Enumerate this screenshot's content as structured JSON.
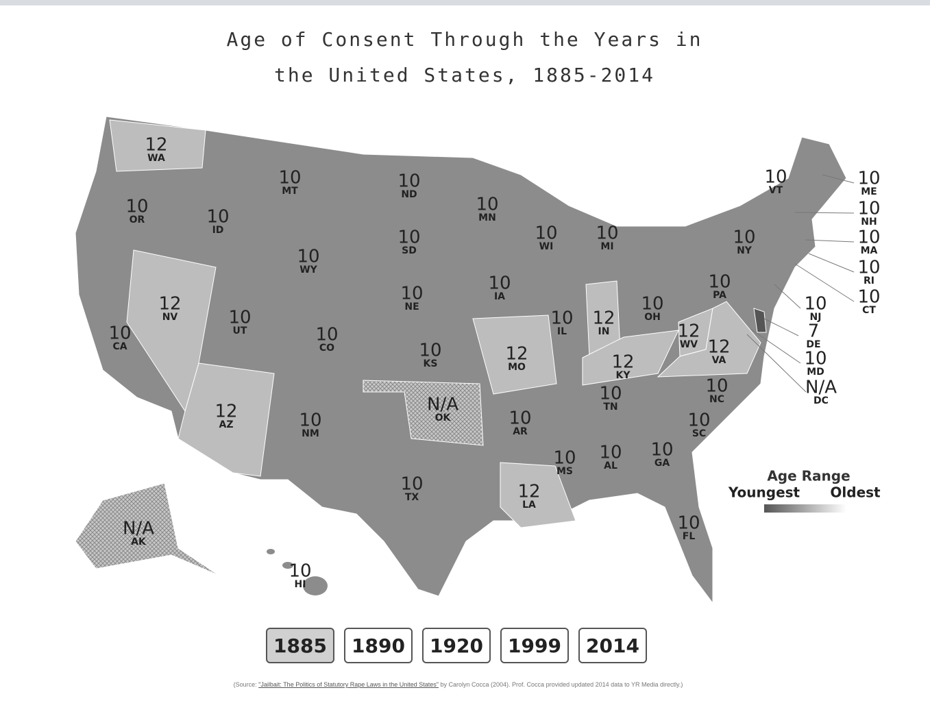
{
  "title": "Age of Consent Through the Years in the United States, 1885-2014",
  "states": [
    {
      "abbr": "WA",
      "age": 12
    },
    {
      "abbr": "OR",
      "age": 10
    },
    {
      "abbr": "CA",
      "age": 10
    },
    {
      "abbr": "ID",
      "age": 10
    },
    {
      "abbr": "NV",
      "age": 12
    },
    {
      "abbr": "MT",
      "age": 10
    },
    {
      "abbr": "WY",
      "age": 10
    },
    {
      "abbr": "UT",
      "age": 10
    },
    {
      "abbr": "AZ",
      "age": 12
    },
    {
      "abbr": "CO",
      "age": 10
    },
    {
      "abbr": "NM",
      "age": 10
    },
    {
      "abbr": "ND",
      "age": 10
    },
    {
      "abbr": "SD",
      "age": 10
    },
    {
      "abbr": "NE",
      "age": 10
    },
    {
      "abbr": "KS",
      "age": 10
    },
    {
      "abbr": "OK",
      "age": "N/A"
    },
    {
      "abbr": "TX",
      "age": 10
    },
    {
      "abbr": "MN",
      "age": 10
    },
    {
      "abbr": "IA",
      "age": 10
    },
    {
      "abbr": "MO",
      "age": 12
    },
    {
      "abbr": "AR",
      "age": 10
    },
    {
      "abbr": "LA",
      "age": 12
    },
    {
      "abbr": "WI",
      "age": 10
    },
    {
      "abbr": "IL",
      "age": 10
    },
    {
      "abbr": "MI",
      "age": 10
    },
    {
      "abbr": "IN",
      "age": 12
    },
    {
      "abbr": "KY",
      "age": 12
    },
    {
      "abbr": "TN",
      "age": 10
    },
    {
      "abbr": "MS",
      "age": 10
    },
    {
      "abbr": "AL",
      "age": 10
    },
    {
      "abbr": "GA",
      "age": 10
    },
    {
      "abbr": "FL",
      "age": 10
    },
    {
      "abbr": "OH",
      "age": 10
    },
    {
      "abbr": "WV",
      "age": 12
    },
    {
      "abbr": "VA",
      "age": 12
    },
    {
      "abbr": "NC",
      "age": 10
    },
    {
      "abbr": "SC",
      "age": 10
    },
    {
      "abbr": "PA",
      "age": 10
    },
    {
      "abbr": "NY",
      "age": 10
    },
    {
      "abbr": "VT",
      "age": 10
    },
    {
      "abbr": "ME",
      "age": 10
    },
    {
      "abbr": "NH",
      "age": 10
    },
    {
      "abbr": "MA",
      "age": 10
    },
    {
      "abbr": "RI",
      "age": 10
    },
    {
      "abbr": "CT",
      "age": 10
    },
    {
      "abbr": "NJ",
      "age": 10
    },
    {
      "abbr": "DE",
      "age": 7
    },
    {
      "abbr": "MD",
      "age": 10
    },
    {
      "abbr": "DC",
      "age": "N/A"
    },
    {
      "abbr": "AK",
      "age": "N/A"
    },
    {
      "abbr": "HI",
      "age": 10
    }
  ],
  "legend": {
    "title": "Age Range",
    "low": "Youngest",
    "high": "Oldest"
  },
  "years": [
    "1885",
    "1890",
    "1920",
    "1999",
    "2014"
  ],
  "selected_year": "1885",
  "source": {
    "prefix": "(Source: ",
    "link": "\"Jailbait: The Politics of Statutory Rape Laws in the United States\"",
    "suffix": " by Carolyn Cocca (2004). Prof. Cocca provided updated 2014 data to YR Media directly.)"
  }
}
